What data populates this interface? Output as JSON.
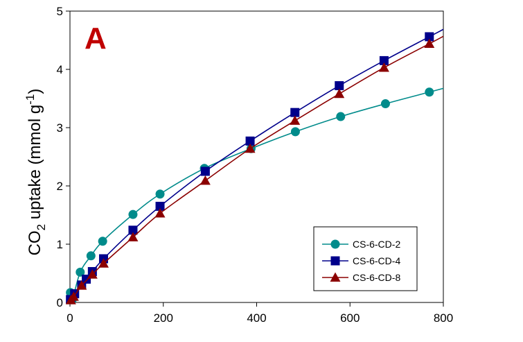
{
  "chart_data": {
    "type": "line",
    "panel_label": "A",
    "panel_label_color": "#c00000",
    "xlabel": "",
    "ylabel": {
      "prefix": "CO",
      "sub": "2",
      "middle": " uptake (mmol g",
      "sup": "-1",
      "suffix": ")"
    },
    "xlim": [
      0,
      800
    ],
    "ylim": [
      0,
      5
    ],
    "xticks": [
      0,
      200,
      400,
      600,
      800
    ],
    "yticks": [
      0,
      1,
      2,
      3,
      4,
      5
    ],
    "grid": false,
    "legend_position": "bottom-right",
    "series": [
      {
        "name": "CS-6-CD-2",
        "color": "#008b8b",
        "marker": "circle",
        "x": [
          1,
          5,
          22,
          45,
          70,
          135,
          193,
          288,
          388,
          483,
          580,
          676,
          770
        ],
        "y": [
          0.17,
          0.05,
          0.52,
          0.8,
          1.05,
          1.51,
          1.86,
          2.3,
          2.64,
          2.93,
          3.19,
          3.41,
          3.61
        ]
      },
      {
        "name": "CS-6-CD-4",
        "color": "#00008b",
        "marker": "square",
        "x": [
          1,
          10,
          25,
          35,
          48,
          72,
          135,
          193,
          290,
          386,
          482,
          577,
          673,
          770
        ],
        "y": [
          0.05,
          0.15,
          0.3,
          0.4,
          0.53,
          0.75,
          1.24,
          1.65,
          2.25,
          2.77,
          3.26,
          3.72,
          4.15,
          4.56
        ]
      },
      {
        "name": "CS-6-CD-8",
        "color": "#8b0000",
        "marker": "triangle",
        "x": [
          2,
          8,
          25,
          48,
          72,
          135,
          193,
          290,
          386,
          482,
          577,
          673,
          770
        ],
        "y": [
          0.04,
          0.1,
          0.29,
          0.48,
          0.67,
          1.12,
          1.53,
          2.09,
          2.64,
          3.12,
          3.58,
          4.03,
          4.44
        ]
      }
    ]
  }
}
